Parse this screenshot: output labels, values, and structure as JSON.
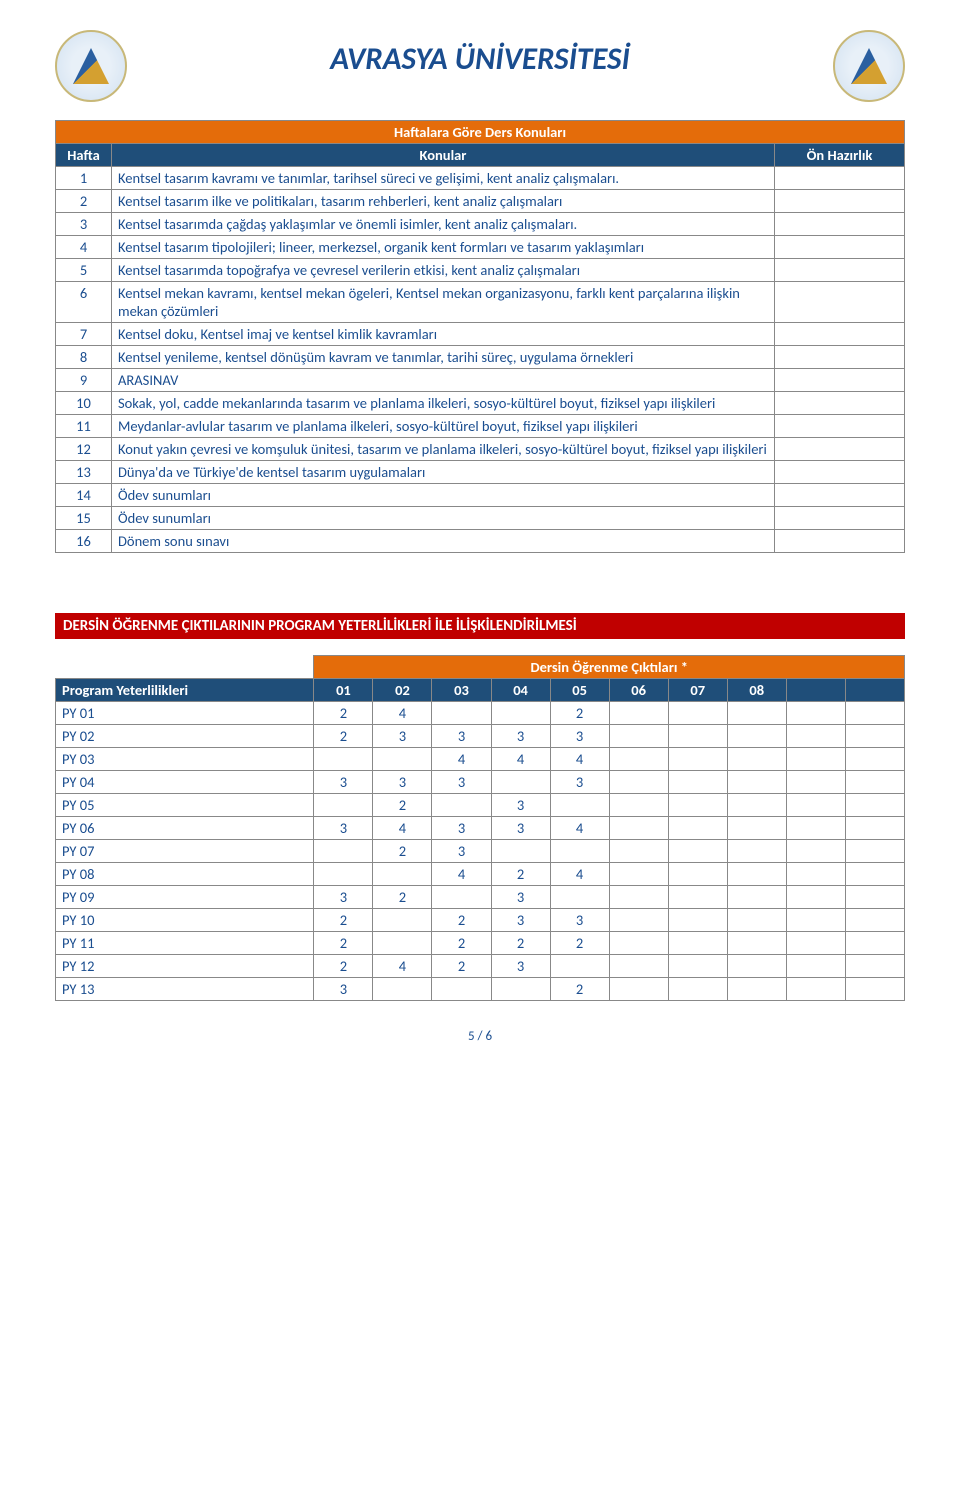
{
  "header": {
    "title": "AVRASYA ÜNİVERSİTESİ"
  },
  "schedule": {
    "banner": "Haftalara Göre Ders Konuları",
    "col_week": "Hafta",
    "col_topic": "Konular",
    "col_prep": "Ön Hazırlık",
    "rows": [
      {
        "w": "1",
        "t": "Kentsel tasarım kavramı ve tanımlar, tarihsel süreci ve gelişimi, kent analiz çalışmaları."
      },
      {
        "w": "2",
        "t": "Kentsel tasarım ilke ve politikaları, tasarım rehberleri,  kent analiz çalışmaları"
      },
      {
        "w": "3",
        "t": "Kentsel tasarımda çağdaş yaklaşımlar ve önemli isimler, kent analiz çalışmaları."
      },
      {
        "w": "4",
        "t": "Kentsel tasarım tipolojileri; lineer, merkezsel, organik kent formları ve tasarım yaklaşımları"
      },
      {
        "w": "5",
        "t": "Kentsel tasarımda topoğrafya ve çevresel verilerin etkisi, kent analiz çalışmaları"
      },
      {
        "w": "6",
        "t": "Kentsel mekan kavramı, kentsel mekan ögeleri, Kentsel mekan organizasyonu, farklı kent parçalarına ilişkin mekan çözümleri"
      },
      {
        "w": "7",
        "t": "Kentsel doku, Kentsel imaj ve kentsel kimlik kavramları"
      },
      {
        "w": "8",
        "t": "Kentsel yenileme, kentsel dönüşüm kavram ve tanımlar, tarihi süreç, uygulama örnekleri"
      },
      {
        "w": "9",
        "t": "ARASINAV"
      },
      {
        "w": "10",
        "t": "Sokak, yol, cadde mekanlarında tasarım ve planlama ilkeleri, sosyo-kültürel boyut, fiziksel yapı ilişkileri"
      },
      {
        "w": "11",
        "t": "Meydanlar-avlular tasarım ve planlama ilkeleri, sosyo-kültürel boyut, fiziksel yapı ilişkileri"
      },
      {
        "w": "12",
        "t": "Konut yakın çevresi ve komşuluk ünitesi, tasarım ve planlama ilkeleri, sosyo-kültürel boyut, fiziksel yapı ilişkileri"
      },
      {
        "w": "13",
        "t": "Dünya'da ve Türkiye'de kentsel tasarım uygulamaları"
      },
      {
        "w": "14",
        "t": "Ödev sunumları"
      },
      {
        "w": "15",
        "t": "Ödev sunumları"
      },
      {
        "w": "16",
        "t": "Dönem sonu sınavı"
      }
    ]
  },
  "matrix": {
    "banner": "DERSİN ÖĞRENME ÇIKTILARININ PROGRAM YETERLİLİKLERİ İLE İLİŞKİLENDİRİLMESİ",
    "super_header": "Dersin Öğrenme Çıktıları *",
    "row_header": "Program Yeterlilikleri",
    "cols": [
      "01",
      "02",
      "03",
      "04",
      "05",
      "06",
      "07",
      "08"
    ],
    "rows": [
      {
        "py": "PY 01",
        "v": [
          "2",
          "4",
          "",
          "",
          "2",
          "",
          "",
          ""
        ]
      },
      {
        "py": "PY 02",
        "v": [
          "2",
          "3",
          "3",
          "3",
          "3",
          "",
          "",
          ""
        ]
      },
      {
        "py": "PY 03",
        "v": [
          "",
          "",
          "4",
          "4",
          "4",
          "",
          "",
          ""
        ]
      },
      {
        "py": "PY 04",
        "v": [
          "3",
          "3",
          "3",
          "",
          "3",
          "",
          "",
          ""
        ]
      },
      {
        "py": "PY 05",
        "v": [
          "",
          "2",
          "",
          "3",
          "",
          "",
          "",
          ""
        ]
      },
      {
        "py": "PY 06",
        "v": [
          "3",
          "4",
          "3",
          "3",
          "4",
          "",
          "",
          ""
        ]
      },
      {
        "py": "PY 07",
        "v": [
          "",
          "2",
          "3",
          "",
          "",
          "",
          "",
          ""
        ]
      },
      {
        "py": "PY 08",
        "v": [
          "",
          "",
          "4",
          "2",
          "4",
          "",
          "",
          ""
        ]
      },
      {
        "py": "PY 09",
        "v": [
          "3",
          "2",
          "",
          "3",
          "",
          "",
          "",
          ""
        ]
      },
      {
        "py": "PY 10",
        "v": [
          "2",
          "",
          "2",
          "3",
          "3",
          "",
          "",
          ""
        ]
      },
      {
        "py": "PY 11",
        "v": [
          "2",
          "",
          "2",
          "2",
          "2",
          "",
          "",
          ""
        ]
      },
      {
        "py": "PY 12",
        "v": [
          "2",
          "4",
          "2",
          "3",
          "",
          "",
          "",
          ""
        ]
      },
      {
        "py": "PY 13",
        "v": [
          "3",
          "",
          "",
          "",
          "2",
          "",
          "",
          ""
        ]
      }
    ]
  },
  "footer": {
    "page": "5 / 6"
  },
  "colors": {
    "orange": "#e46c0a",
    "blue": "#1f4e79",
    "red": "#c00000",
    "text": "#1a4d8f",
    "border": "#888888"
  }
}
